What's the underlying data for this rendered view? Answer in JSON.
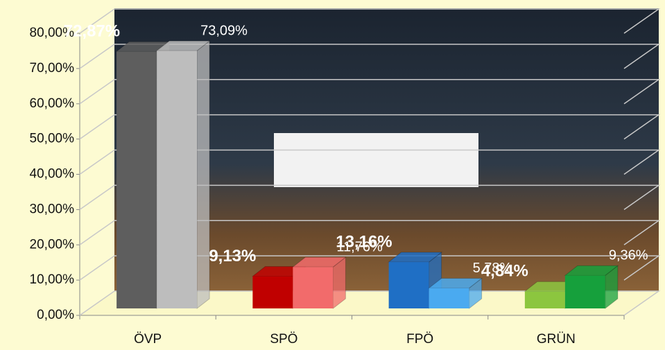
{
  "chart_data": {
    "type": "bar3d",
    "categories": [
      "ÖVP",
      "SPÖ",
      "FPÖ",
      "GRÜN"
    ],
    "series": [
      {
        "colors": [
          "#5e5e5e",
          "#c00000",
          "#1f6fc5",
          "#8cc63f"
        ],
        "values": [
          72.87,
          9.13,
          13.16,
          4.84
        ],
        "value_labels": [
          "72,87%",
          "9,13%",
          "13,16%",
          "4,84%"
        ]
      },
      {
        "colors": [
          "#bdbdbd",
          "#f26b6b",
          "#4aaaf0",
          "#16a03c"
        ],
        "values": [
          73.09,
          11.76,
          5.78,
          9.36
        ],
        "value_labels": [
          "73,09%",
          "11,76%",
          "5,78%",
          "9,36%"
        ]
      }
    ],
    "ylim": [
      0,
      80
    ],
    "yticks": [
      {
        "value": 0,
        "label": "0,00%"
      },
      {
        "value": 10,
        "label": "10,00%"
      },
      {
        "value": 20,
        "label": "20,00%"
      },
      {
        "value": 30,
        "label": "30,00%"
      },
      {
        "value": 40,
        "label": "40,00%"
      },
      {
        "value": 50,
        "label": "50,00%"
      },
      {
        "value": 60,
        "label": "60,00%"
      },
      {
        "value": 70,
        "label": "70,00%"
      },
      {
        "value": 80,
        "label": "80,00%"
      }
    ],
    "grid": true
  }
}
